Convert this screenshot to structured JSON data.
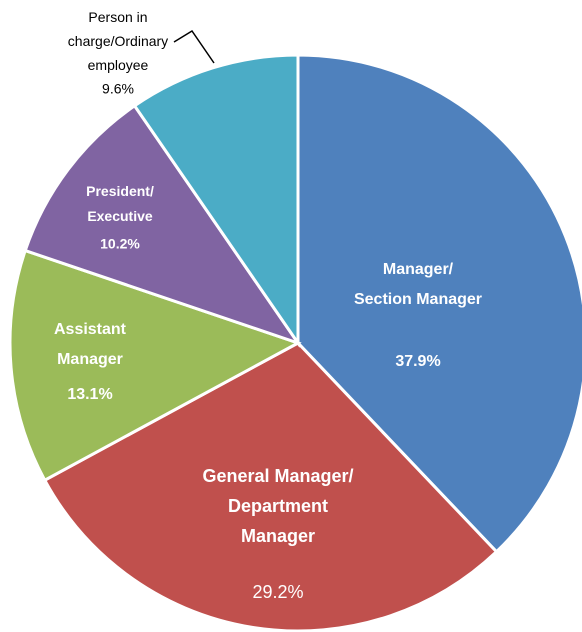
{
  "chart_data": {
    "type": "pie",
    "categories": [
      "Manager/\nSection Manager",
      "General Manager/\nDepartment\nManager",
      "Assistant\nManager",
      "President/\nExecutive",
      "Person in\ncharge/Ordinary\nemployee"
    ],
    "values": [
      37.9,
      29.2,
      13.1,
      10.2,
      9.6
    ],
    "value_labels": [
      "37.9%",
      "29.2%",
      "13.1%",
      "10.2%",
      "9.6%"
    ],
    "colors": [
      "#4f81bd",
      "#c0504d",
      "#9bbb59",
      "#8064a2",
      "#4bacc6"
    ]
  }
}
